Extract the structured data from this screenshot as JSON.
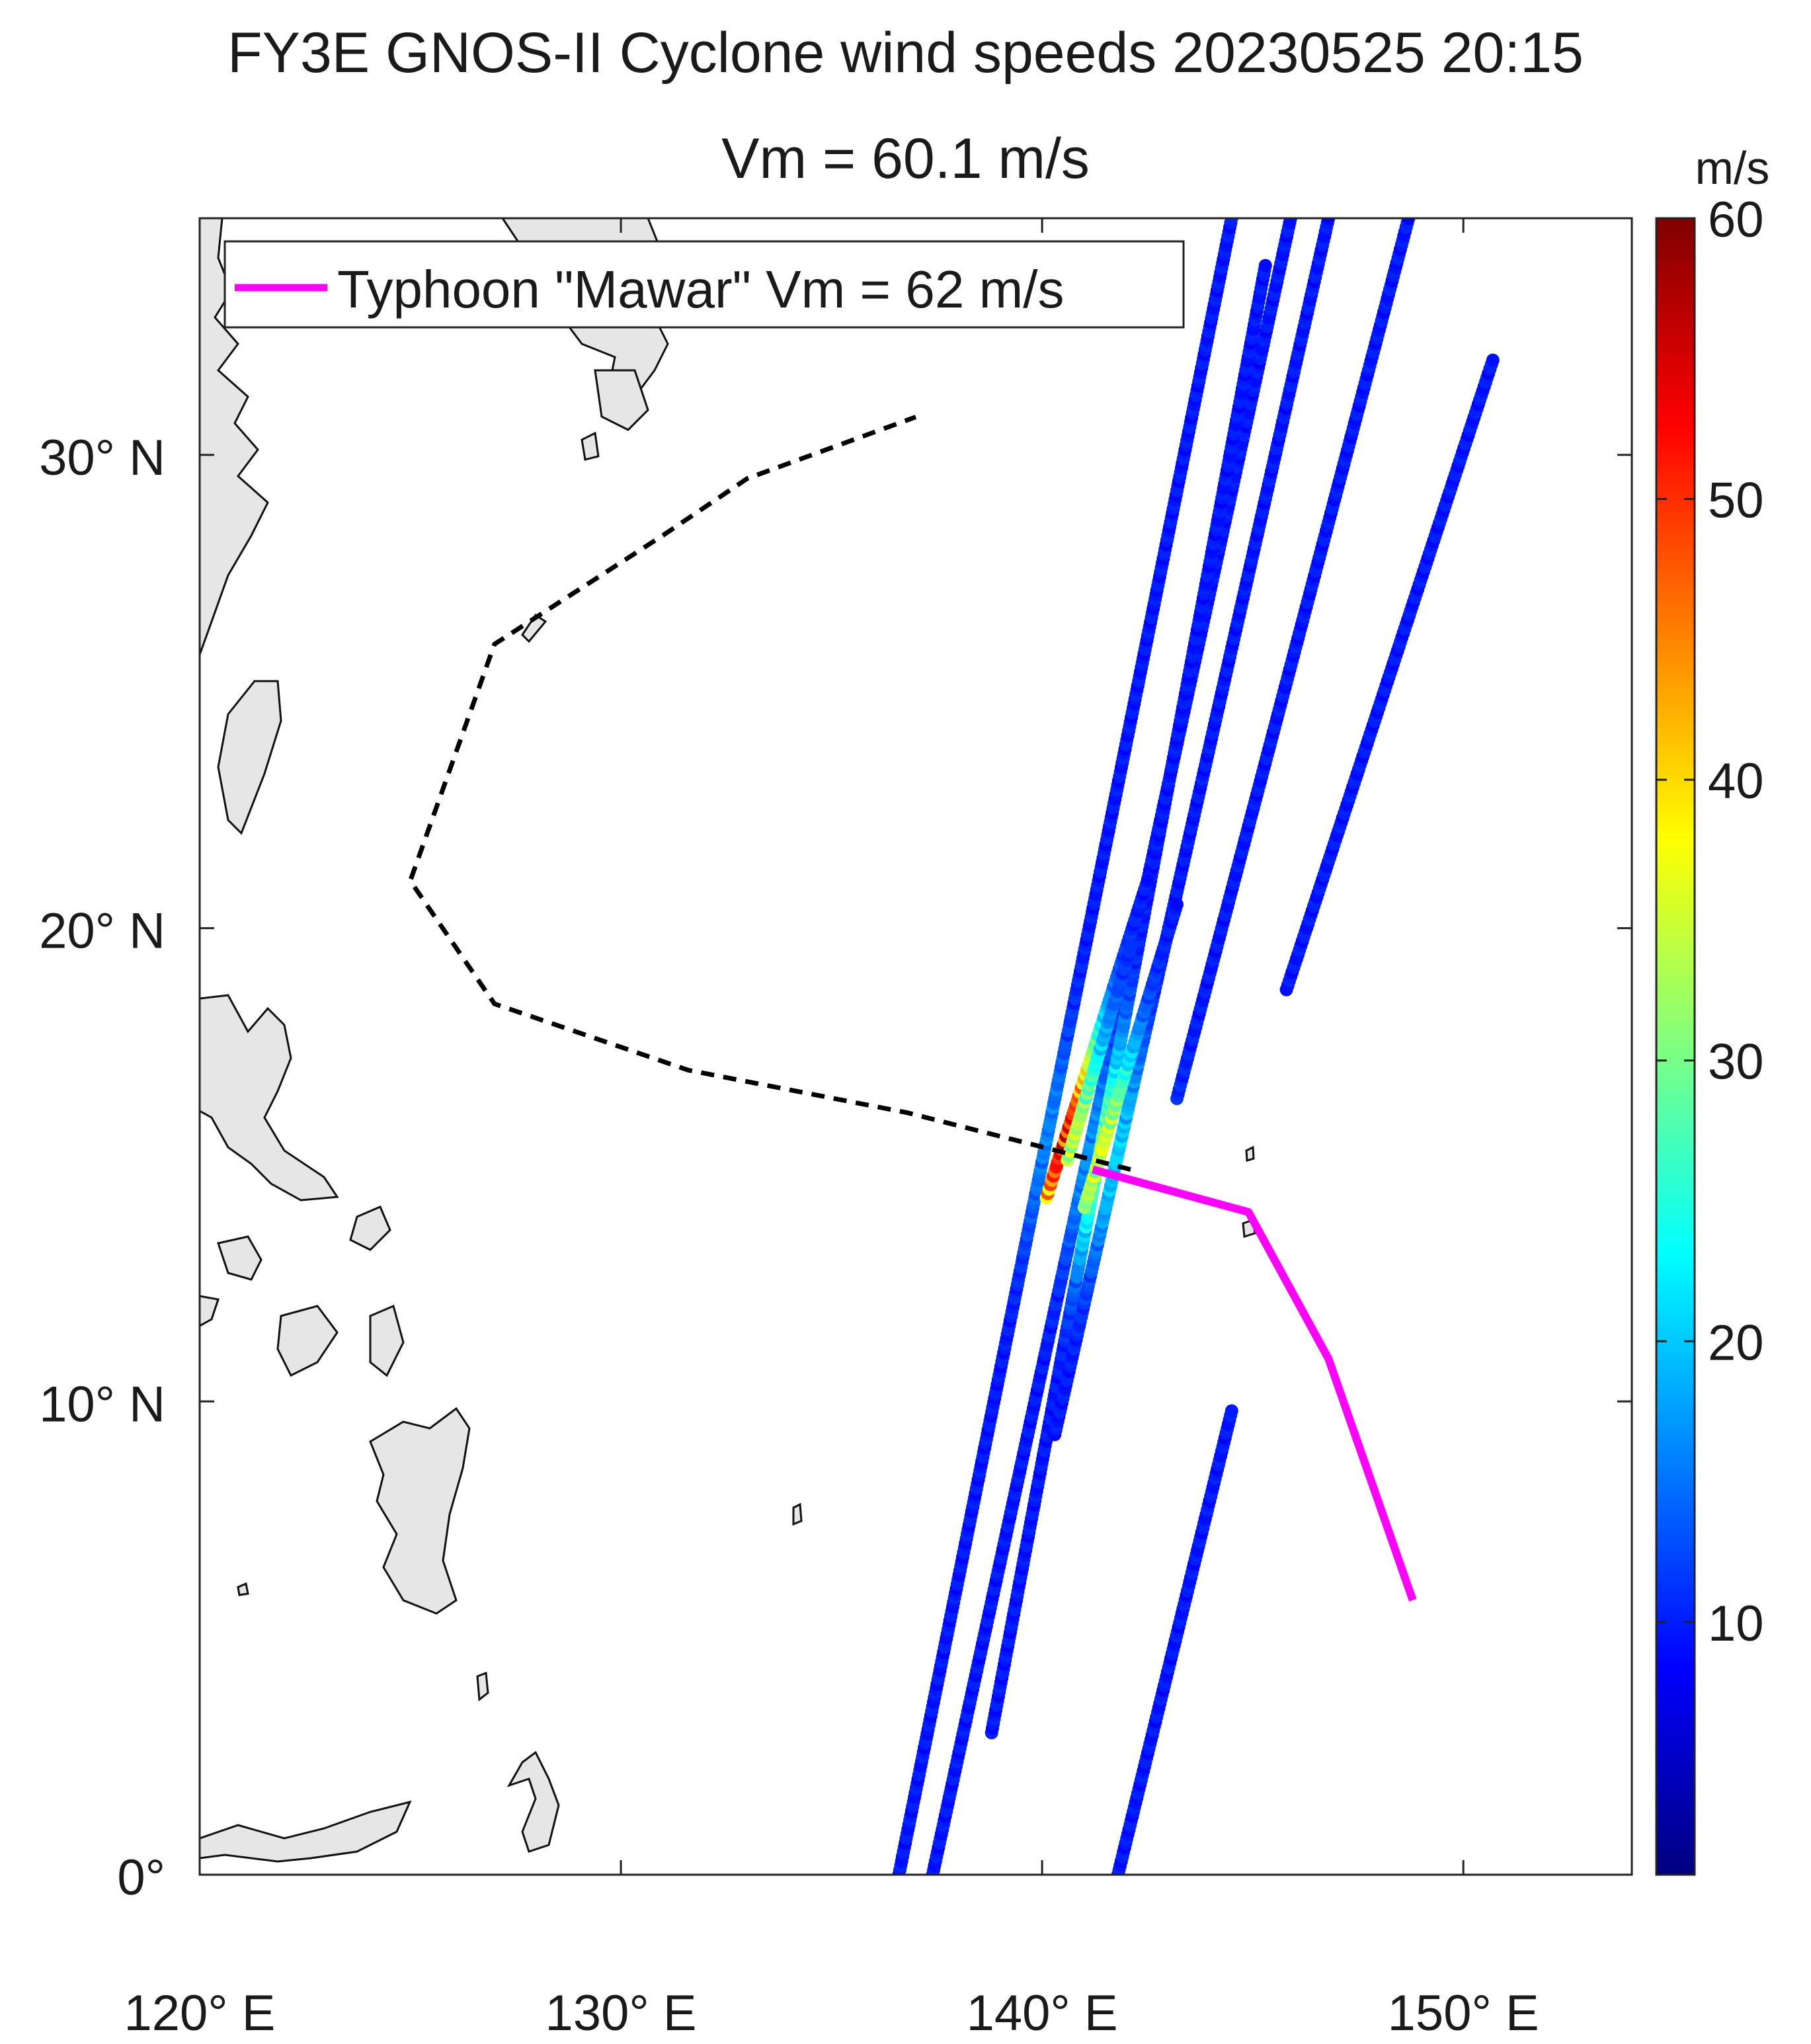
{
  "chart_data": {
    "type": "scatter",
    "title": "FY3E GNOS-II Cyclone wind speeds 20230525 20:15",
    "subtitle": "Vm = 60.1 m/s",
    "map_extent": {
      "lon": [
        120,
        154
      ],
      "lat": [
        0,
        35
      ]
    },
    "x_ticks": [
      {
        "value": 120,
        "label": "120° E"
      },
      {
        "value": 130,
        "label": "130° E"
      },
      {
        "value": 140,
        "label": "140° E"
      },
      {
        "value": 150,
        "label": "150° E"
      }
    ],
    "y_ticks": [
      {
        "value": 0,
        "label": "0°"
      },
      {
        "value": 10,
        "label": "10° N"
      },
      {
        "value": 20,
        "label": "20° N"
      },
      {
        "value": 30,
        "label": "30° N"
      }
    ],
    "colorbar": {
      "unit_label": "m/s",
      "range": [
        1,
        60
      ],
      "ticks": [
        10,
        20,
        30,
        40,
        50,
        60
      ],
      "colormap": "jet"
    },
    "legend": {
      "entries": [
        {
          "label": "Typhoon \"Mawar\" Vm = 62 m/s",
          "color": "#ff00ff"
        }
      ],
      "placement": "top-left"
    },
    "typhoon_track_observed": {
      "color": "#ff00ff",
      "points": [
        [
          141.2,
          14.9
        ],
        [
          144.9,
          14.0
        ],
        [
          146.8,
          10.9
        ],
        [
          148.8,
          5.8
        ]
      ]
    },
    "typhoon_track_forecast": {
      "color": "#000000",
      "style": "dashed",
      "points": [
        [
          142.1,
          14.9
        ],
        [
          139.9,
          15.4
        ],
        [
          136.8,
          16.1
        ],
        [
          131.6,
          17.0
        ],
        [
          127.0,
          18.4
        ],
        [
          125.0,
          21.0
        ],
        [
          127.0,
          26.0
        ],
        [
          131.0,
          28.3
        ],
        [
          133.0,
          29.5
        ],
        [
          137.0,
          30.8
        ]
      ]
    },
    "storm_center": [
      140.3,
      15.6
    ],
    "tracks": [
      {
        "from": [
          136.6,
          0.0
        ],
        "to": [
          144.5,
          35.0
        ],
        "vmax": 15
      },
      {
        "from": [
          137.4,
          0.0
        ],
        "to": [
          145.9,
          35.0
        ],
        "vmax": 17
      },
      {
        "from": [
          138.8,
          3.0
        ],
        "to": [
          145.3,
          34.0
        ],
        "vmax": 36
      },
      {
        "from": [
          140.3,
          9.3
        ],
        "to": [
          146.8,
          35.0
        ],
        "vmax": 26
      },
      {
        "from": [
          140.1,
          14.3
        ],
        "to": [
          142.5,
          21.0
        ],
        "vmax": 56
      },
      {
        "from": [
          141.0,
          14.1
        ],
        "to": [
          143.2,
          20.5
        ],
        "vmax": 44
      },
      {
        "from": [
          140.6,
          15.1
        ],
        "to": [
          142.1,
          19.6
        ],
        "vmax": 36
      },
      {
        "from": [
          141.8,
          0.0
        ],
        "to": [
          144.5,
          9.8
        ],
        "vmax": 10
      },
      {
        "from": [
          143.2,
          16.4
        ],
        "to": [
          148.7,
          35.0
        ],
        "vmax": 14
      },
      {
        "from": [
          145.8,
          18.7
        ],
        "to": [
          150.7,
          32.0
        ],
        "vmax": 10
      }
    ]
  }
}
